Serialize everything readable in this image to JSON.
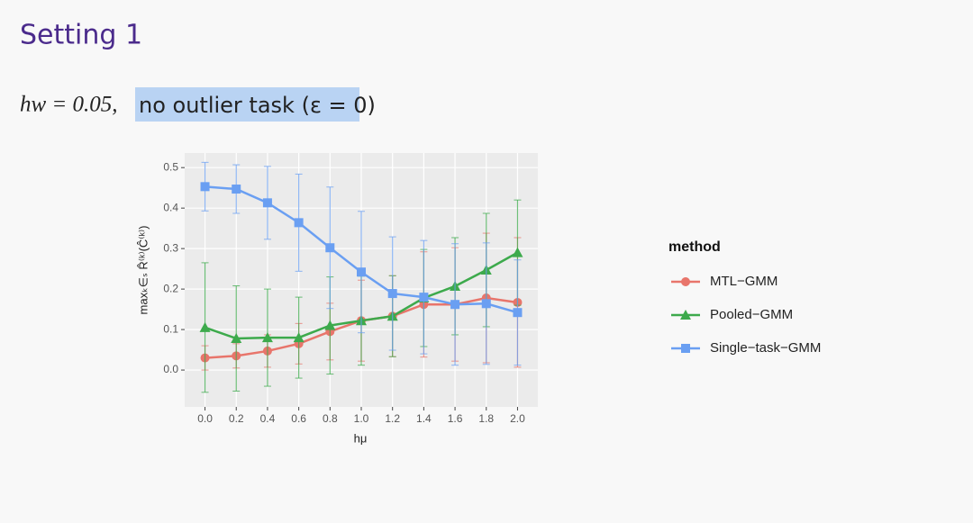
{
  "heading": "Setting 1",
  "subtitle_math": "hw = 0.05,",
  "subtitle_text": "no outlier task (ε = 0)",
  "chart_data": {
    "type": "line",
    "xlabel": "hμ",
    "ylabel": "maxₖ∈ₛ R̂⁽ᵏ⁾(Ĉ⁽ᵏ⁾)",
    "legend_title": "method",
    "legend": "right",
    "grid": true,
    "x": [
      0,
      0.2,
      0.4,
      0.6,
      0.8,
      1,
      1.2,
      1.4,
      1.6,
      1.8,
      2
    ],
    "xlim": [
      -0.13,
      2.13
    ],
    "ylim": [
      -0.091,
      0.536
    ],
    "xticks": [
      {
        "value": 0,
        "label": "0.0"
      },
      0.2,
      0.4,
      0.6,
      0.8,
      {
        "value": 1,
        "label": "1.0"
      },
      1.2,
      1.4,
      1.6,
      1.8,
      {
        "value": 2,
        "label": "2.0"
      }
    ],
    "yticks": [
      {
        "value": 0,
        "label": "0.0"
      },
      0.1,
      0.2,
      0.3,
      0.4,
      0.5
    ],
    "series": [
      {
        "name": "MTL−GMM",
        "color": "#e8756b",
        "marker": "circle",
        "values": [
          0.03,
          0.035,
          0.047,
          0.065,
          0.095,
          0.122,
          0.133,
          0.162,
          0.162,
          0.178,
          0.167
        ],
        "errors": [
          0.03,
          0.03,
          0.04,
          0.05,
          0.07,
          0.1,
          0.1,
          0.13,
          0.14,
          0.16,
          0.16
        ]
      },
      {
        "name": "Pooled−GMM",
        "color": "#3daa4c",
        "marker": "triangle",
        "values": [
          0.105,
          0.078,
          0.08,
          0.08,
          0.11,
          0.122,
          0.133,
          0.178,
          0.207,
          0.247,
          0.29
        ],
        "errors": [
          0.16,
          0.13,
          0.12,
          0.1,
          0.12,
          0.11,
          0.1,
          0.12,
          0.12,
          0.14,
          0.13
        ]
      },
      {
        "name": "Single−task−GMM",
        "color": "#6a9ff2",
        "marker": "square",
        "values": [
          0.453,
          0.447,
          0.413,
          0.364,
          0.302,
          0.242,
          0.189,
          0.18,
          0.162,
          0.164,
          0.142
        ],
        "errors": [
          0.06,
          0.06,
          0.09,
          0.12,
          0.15,
          0.15,
          0.14,
          0.14,
          0.15,
          0.15,
          0.13
        ]
      }
    ]
  }
}
